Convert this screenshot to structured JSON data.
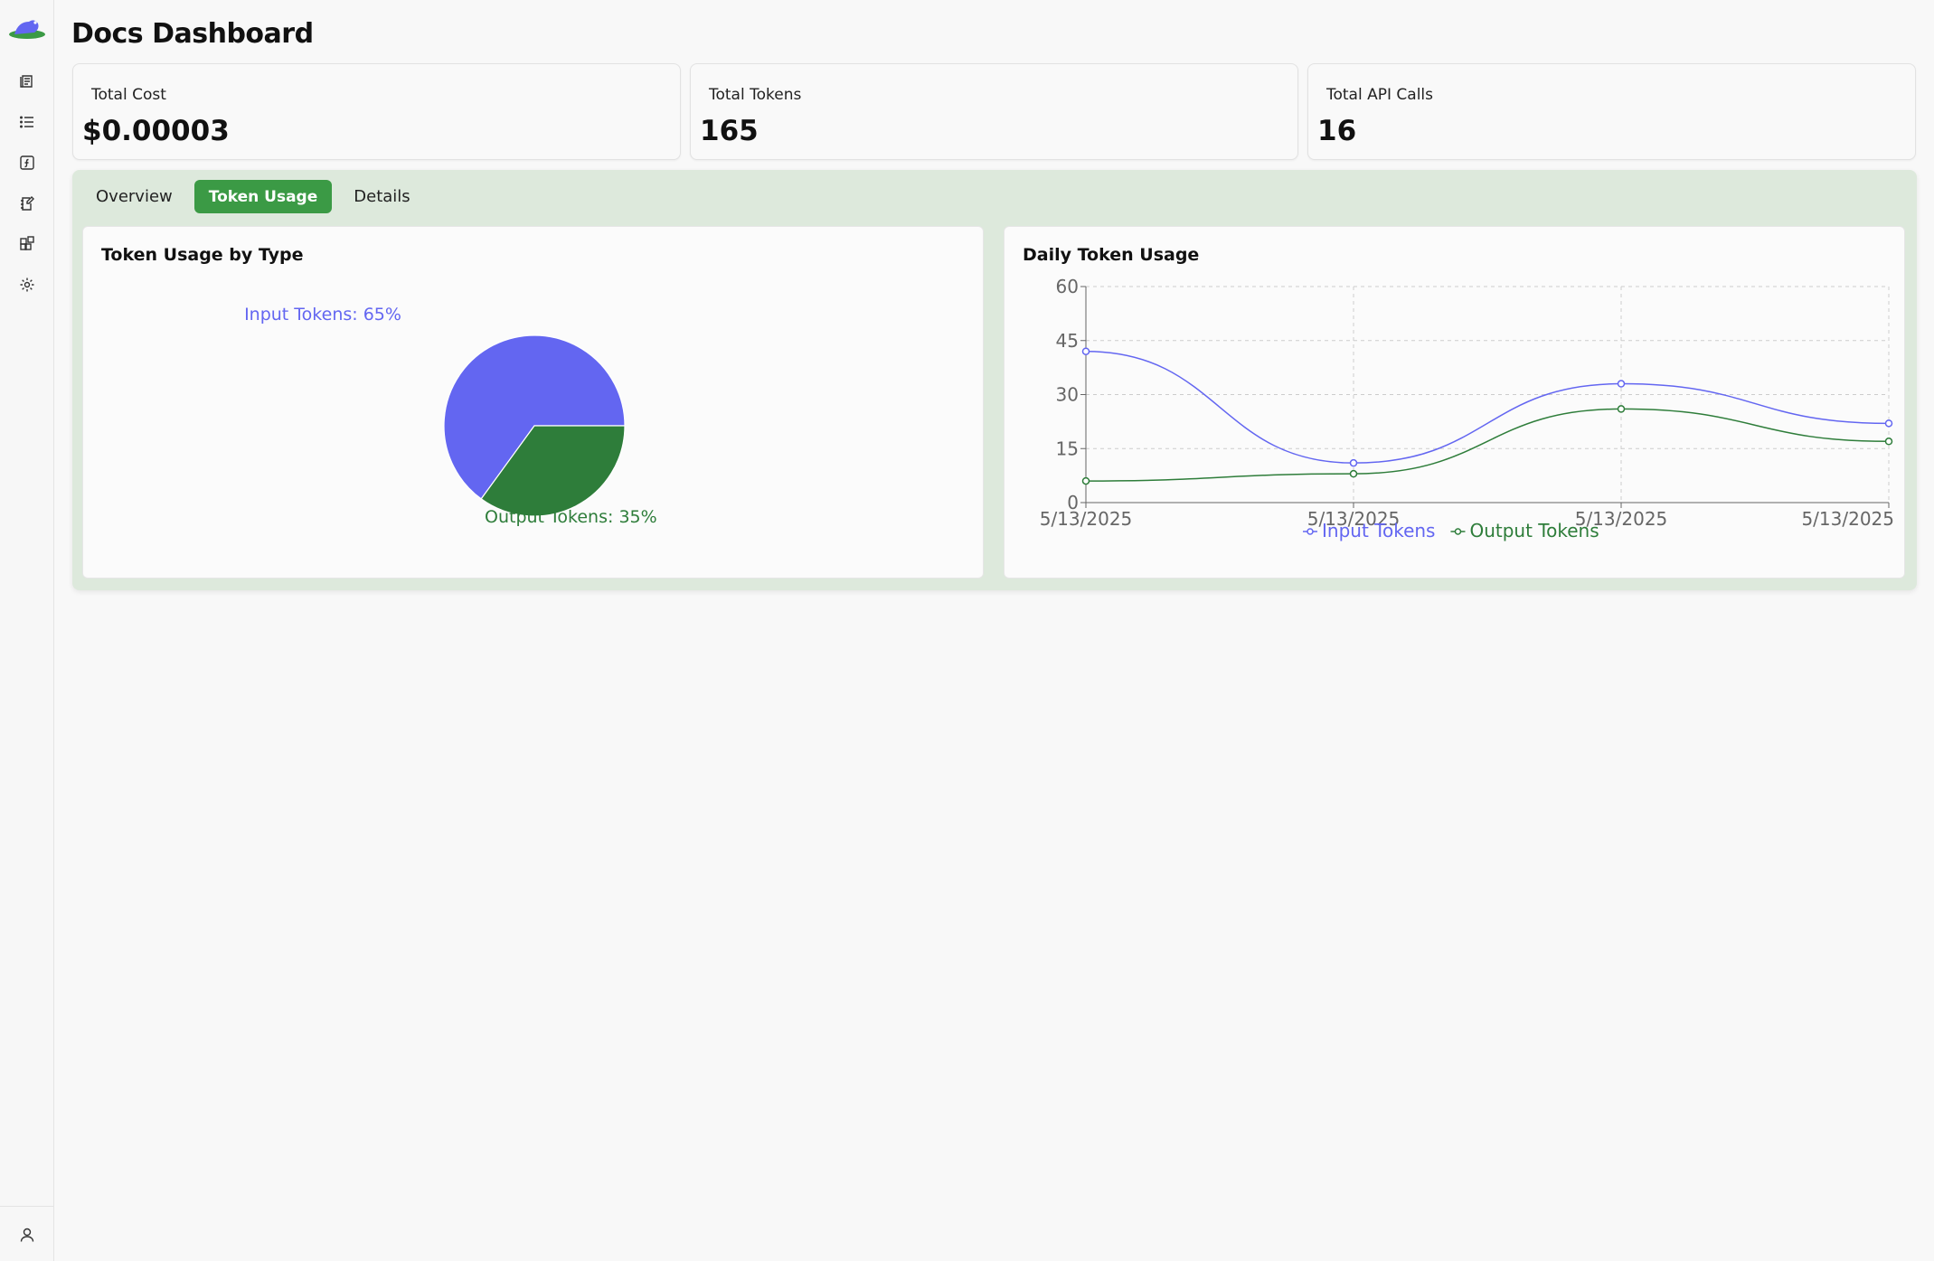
{
  "app": {
    "title": "Docs Dashboard"
  },
  "sidebar": {
    "icons": [
      "logo-icon",
      "scroll-icon",
      "list-icon",
      "function-icon",
      "notebook-edit-icon",
      "blocks-icon",
      "gear-icon"
    ],
    "bottom_icon": "user-icon"
  },
  "stats": [
    {
      "label": "Total Cost",
      "value": "$0.00003"
    },
    {
      "label": "Total Tokens",
      "value": "165"
    },
    {
      "label": "Total API Calls",
      "value": "16"
    }
  ],
  "tabs": [
    {
      "label": "Overview",
      "active": false
    },
    {
      "label": "Token Usage",
      "active": true
    },
    {
      "label": "Details",
      "active": false
    }
  ],
  "colors": {
    "accent": "#3b9a45",
    "input": "#6366f1",
    "output": "#2e7d3a",
    "panel": "#dde9dc"
  },
  "chart_data": [
    {
      "type": "pie",
      "title": "Token Usage by Type",
      "slices": [
        {
          "name": "Input Tokens",
          "value": 65,
          "label": "Input Tokens: 65%",
          "color": "#6366f1"
        },
        {
          "name": "Output Tokens",
          "value": 35,
          "label": "Output Tokens: 35%",
          "color": "#2e7d3a"
        }
      ]
    },
    {
      "type": "line",
      "title": "Daily Token Usage",
      "x": [
        "5/13/2025",
        "5/13/2025",
        "5/13/2025",
        "5/13/2025"
      ],
      "ylim": [
        0,
        60
      ],
      "yticks": [
        0,
        15,
        30,
        45,
        60
      ],
      "grid": true,
      "legend": "bottom",
      "series": [
        {
          "name": "Input Tokens",
          "values": [
            42,
            11,
            33,
            22
          ],
          "color": "#6366f1"
        },
        {
          "name": "Output Tokens",
          "values": [
            6,
            8,
            26,
            17
          ],
          "color": "#2e7d3a"
        }
      ]
    }
  ]
}
